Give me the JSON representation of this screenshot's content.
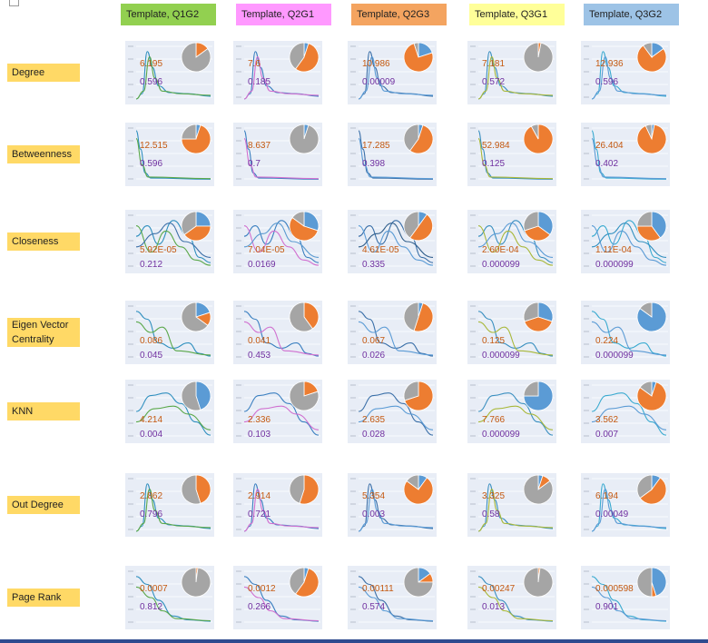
{
  "columns": [
    {
      "label": "Template, Q1G2",
      "color": "#92d050"
    },
    {
      "label": "Template, Q2G1",
      "color": "#ff99ff"
    },
    {
      "label": "Template, Q2G3",
      "color": "#f4a460"
    },
    {
      "label": "Template, Q3G1",
      "color": "#ffff99"
    },
    {
      "label": "Template, Q3G2",
      "color": "#9dc3e6"
    }
  ],
  "rows": [
    {
      "label": "Degree",
      "shape": "peak-left",
      "cells": [
        {
          "v1": "6.195",
          "v2": "0.596",
          "pie": [
            0.0,
            0.15,
            0.85
          ]
        },
        {
          "v1": "7.6",
          "v2": "0.185",
          "pie": [
            0.05,
            0.55,
            0.4
          ]
        },
        {
          "v1": "10.986",
          "v2": "0.00009",
          "pie": [
            0.2,
            0.75,
            0.05
          ]
        },
        {
          "v1": "7.181",
          "v2": "0.572",
          "pie": [
            0.0,
            0.03,
            0.97
          ]
        },
        {
          "v1": "12.936",
          "v2": "0.596",
          "pie": [
            0.15,
            0.75,
            0.1
          ]
        }
      ]
    },
    {
      "label": "Betweenness",
      "shape": "drop",
      "cells": [
        {
          "v1": "12.515",
          "v2": "0.596",
          "pie": [
            0.05,
            0.7,
            0.25
          ]
        },
        {
          "v1": "8.637",
          "v2": "0.7",
          "pie": [
            0.05,
            0.0,
            0.95
          ]
        },
        {
          "v1": "17.285",
          "v2": "0.398",
          "pie": [
            0.05,
            0.55,
            0.4
          ]
        },
        {
          "v1": "52.984",
          "v2": "0.125",
          "pie": [
            0.0,
            0.92,
            0.08
          ]
        },
        {
          "v1": "26.404",
          "v2": "0.402",
          "pie": [
            0.03,
            0.9,
            0.07
          ]
        }
      ]
    },
    {
      "label": "Closeness",
      "shape": "wave",
      "cells": [
        {
          "v1": "5.92E-05",
          "v2": "0.212",
          "pie": [
            0.25,
            0.4,
            0.35
          ]
        },
        {
          "v1": "7.04E-05",
          "v2": "0.0169",
          "pie": [
            0.3,
            0.55,
            0.15
          ]
        },
        {
          "v1": "4.61E-05",
          "v2": "0.335",
          "pie": [
            0.1,
            0.5,
            0.4
          ]
        },
        {
          "v1": "2.60E-04",
          "v2": "0.000099",
          "pie": [
            0.35,
            0.35,
            0.3
          ]
        },
        {
          "v1": "1.11E-04",
          "v2": "0.000099",
          "pie": [
            0.4,
            0.35,
            0.25
          ]
        }
      ]
    },
    {
      "label": "Eigen Vector Centrality",
      "shape": "decline",
      "cells": [
        {
          "v1": "0.086",
          "v2": "0.045",
          "pie": [
            0.2,
            0.15,
            0.65
          ]
        },
        {
          "v1": "0.041",
          "v2": "0.453",
          "pie": [
            0.0,
            0.4,
            0.6
          ]
        },
        {
          "v1": "0.067",
          "v2": "0.026",
          "pie": [
            0.05,
            0.5,
            0.45
          ]
        },
        {
          "v1": "0.125",
          "v2": "0.000099",
          "pie": [
            0.3,
            0.4,
            0.3
          ]
        },
        {
          "v1": "0.224",
          "v2": "0.000099",
          "pie": [
            0.85,
            0.0,
            0.15
          ]
        }
      ]
    },
    {
      "label": "KNN",
      "shape": "hump",
      "cells": [
        {
          "v1": "4.214",
          "v2": "0.004",
          "pie": [
            0.45,
            0.0,
            0.55
          ]
        },
        {
          "v1": "2.336",
          "v2": "0.103",
          "pie": [
            0.0,
            0.2,
            0.8
          ]
        },
        {
          "v1": "2.635",
          "v2": "0.028",
          "pie": [
            0.0,
            0.7,
            0.3
          ]
        },
        {
          "v1": "7.766",
          "v2": "0.000099",
          "pie": [
            0.75,
            0.0,
            0.25
          ]
        },
        {
          "v1": "3.562",
          "v2": "0.007",
          "pie": [
            0.05,
            0.8,
            0.15
          ]
        }
      ]
    },
    {
      "label": "Out Degree",
      "shape": "peak-left",
      "cells": [
        {
          "v1": "2.862",
          "v2": "0.796",
          "pie": [
            0.0,
            0.45,
            0.55
          ]
        },
        {
          "v1": "2.914",
          "v2": "0.721",
          "pie": [
            0.0,
            0.55,
            0.45
          ]
        },
        {
          "v1": "5.354",
          "v2": "0.003",
          "pie": [
            0.1,
            0.75,
            0.15
          ]
        },
        {
          "v1": "3.325",
          "v2": "0.58",
          "pie": [
            0.05,
            0.1,
            0.85
          ]
        },
        {
          "v1": "6.194",
          "v2": "0.00049",
          "pie": [
            0.1,
            0.55,
            0.35
          ]
        }
      ]
    },
    {
      "label": "Page Rank",
      "shape": "drop-slow",
      "cells": [
        {
          "v1": "0.0007",
          "v2": "0.812",
          "pie": [
            0.0,
            0.02,
            0.98
          ]
        },
        {
          "v1": "0.0012",
          "v2": "0.266",
          "pie": [
            0.05,
            0.55,
            0.4
          ]
        },
        {
          "v1": "0.00111",
          "v2": "0.574",
          "pie": [
            0.15,
            0.1,
            0.75
          ]
        },
        {
          "v1": "0.00247",
          "v2": "0.013",
          "pie": [
            0.0,
            0.02,
            0.98
          ]
        },
        {
          "v1": "0.000598",
          "v2": "0.901",
          "pie": [
            0.45,
            0.05,
            0.5
          ]
        }
      ]
    }
  ],
  "pie_colors": {
    "blue": "#5b9bd5",
    "orange": "#ed7d31",
    "gray": "#a5a5a5"
  }
}
